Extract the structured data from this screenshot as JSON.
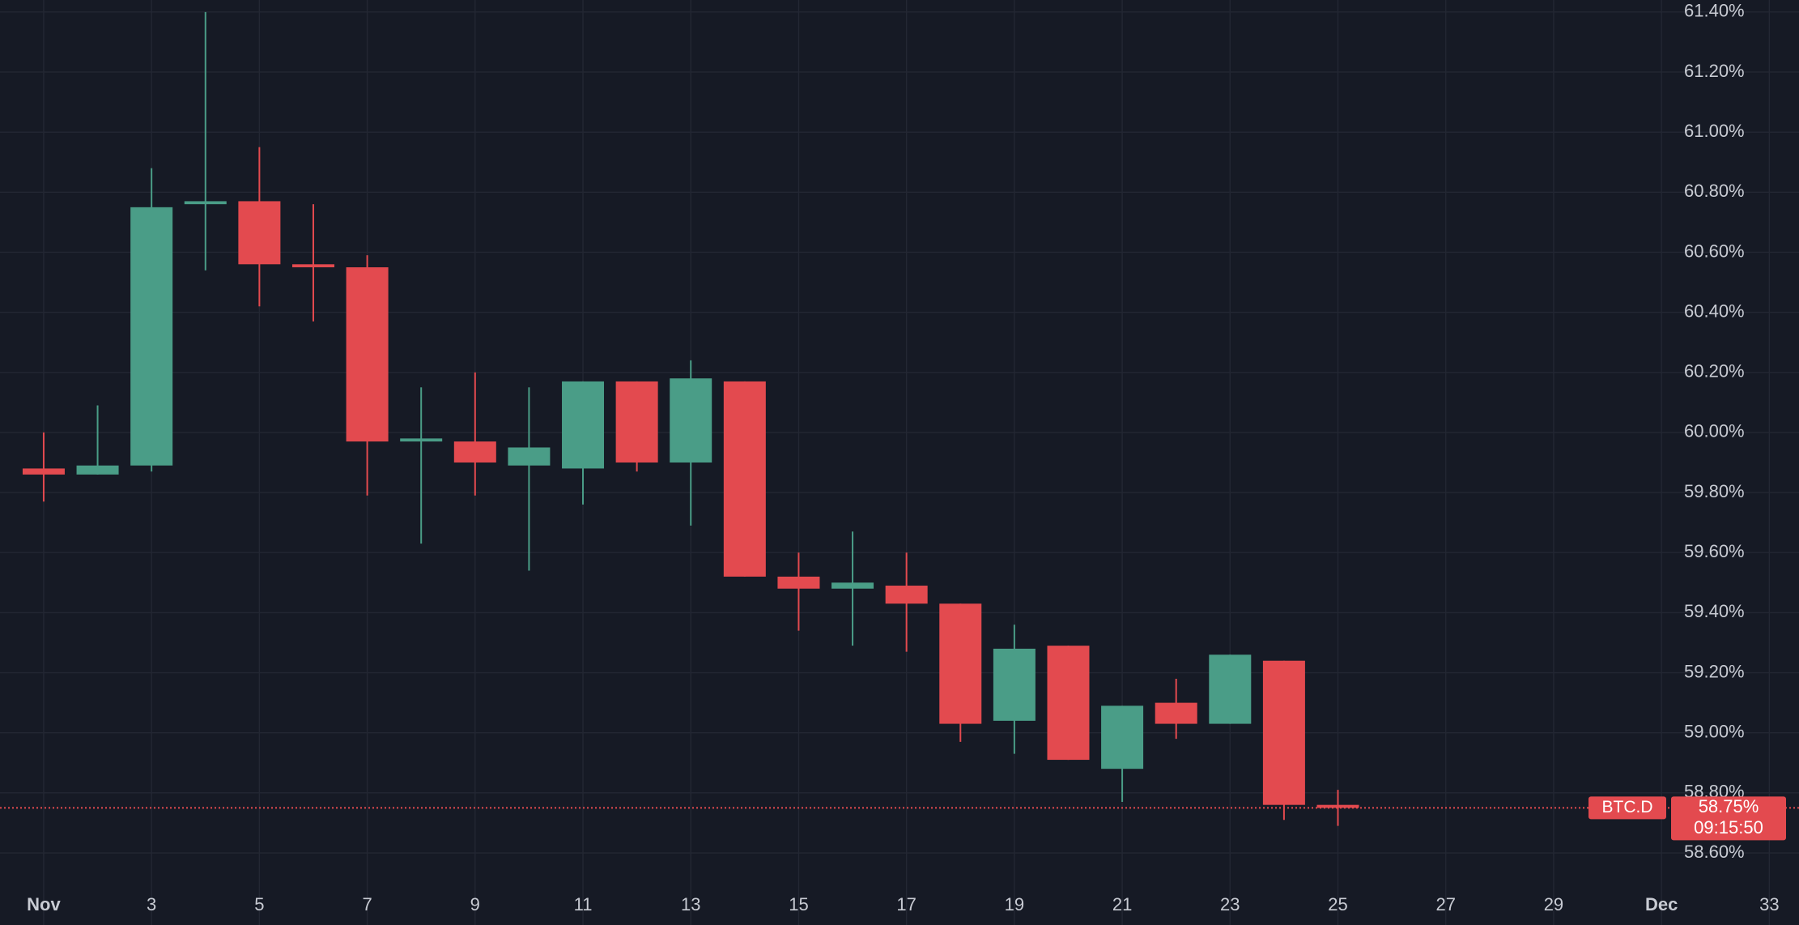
{
  "chart_data": {
    "type": "candlestick",
    "x": [
      1,
      2,
      3,
      4,
      5,
      6,
      7,
      8,
      9,
      10,
      11,
      12,
      13,
      14,
      15,
      16,
      17,
      18,
      19,
      20,
      21,
      22,
      23,
      24,
      25
    ],
    "open": [
      59.88,
      59.86,
      59.89,
      60.76,
      60.77,
      60.56,
      60.55,
      59.97,
      59.97,
      59.89,
      59.88,
      60.17,
      59.9,
      60.17,
      59.52,
      59.48,
      59.49,
      59.43,
      59.04,
      59.29,
      58.88,
      59.1,
      59.03,
      59.24,
      58.76
    ],
    "high": [
      60.0,
      60.09,
      60.88,
      61.4,
      60.95,
      60.76,
      60.59,
      60.15,
      60.2,
      60.15,
      60.17,
      60.17,
      60.24,
      60.17,
      59.6,
      59.67,
      59.6,
      59.43,
      59.36,
      59.29,
      59.09,
      59.18,
      59.26,
      59.24,
      58.81
    ],
    "low": [
      59.77,
      59.86,
      59.87,
      60.54,
      60.42,
      60.37,
      59.79,
      59.63,
      59.79,
      59.54,
      59.76,
      59.87,
      59.69,
      59.52,
      59.34,
      59.29,
      59.27,
      58.97,
      58.93,
      58.91,
      58.77,
      58.98,
      59.03,
      58.71,
      58.69
    ],
    "close": [
      59.86,
      59.89,
      60.75,
      60.77,
      60.56,
      60.55,
      59.97,
      59.98,
      59.9,
      59.95,
      60.17,
      59.9,
      60.18,
      59.52,
      59.48,
      59.5,
      59.43,
      59.03,
      59.28,
      58.91,
      59.09,
      59.03,
      59.26,
      58.76,
      58.75
    ],
    "up_color": "#4a9d87",
    "down_color": "#e34a4f",
    "xlim": [
      0.19,
      33.55
    ],
    "xticks": [
      {
        "value": 1,
        "label": "Nov"
      },
      3,
      5,
      7,
      9,
      11,
      13,
      15,
      17,
      19,
      21,
      23,
      25,
      27,
      29,
      {
        "value": 31,
        "label": "Dec"
      },
      33
    ],
    "ylim": [
      58.36,
      61.44
    ],
    "yticks": [
      {
        "value": 58.6,
        "label": "58.60%"
      },
      {
        "value": 58.8,
        "label": "58.80%"
      },
      {
        "value": 59.0,
        "label": "59.00%"
      },
      {
        "value": 59.2,
        "label": "59.20%"
      },
      {
        "value": 59.4,
        "label": "59.40%"
      },
      {
        "value": 59.6,
        "label": "59.60%"
      },
      {
        "value": 59.8,
        "label": "59.80%"
      },
      {
        "value": 60.0,
        "label": "60.00%"
      },
      {
        "value": 60.2,
        "label": "60.20%"
      },
      {
        "value": 60.4,
        "label": "60.40%"
      },
      {
        "value": 60.6,
        "label": "60.60%"
      },
      {
        "value": 60.8,
        "label": "60.80%"
      },
      {
        "value": 61.0,
        "label": "61.00%"
      },
      {
        "value": 61.2,
        "label": "61.20%"
      },
      {
        "value": 61.4,
        "label": "61.40%"
      }
    ],
    "grid": true,
    "last_price": {
      "symbol": "BTC.D",
      "value": 58.75,
      "value_label": "58.75%",
      "countdown": "09:15:50"
    }
  }
}
